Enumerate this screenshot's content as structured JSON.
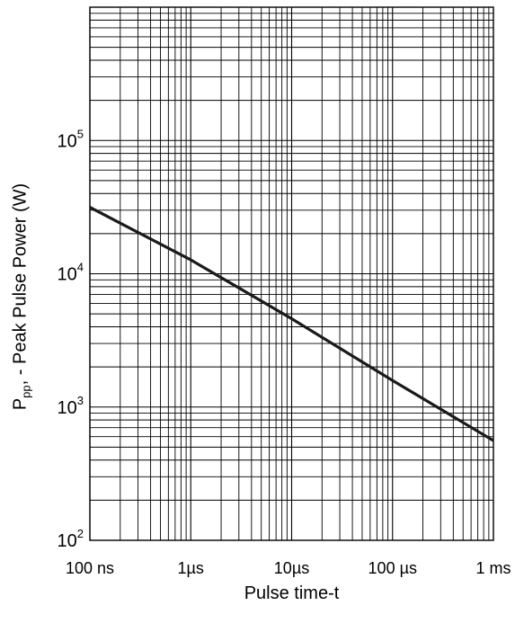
{
  "chart_data": {
    "type": "line",
    "x_scale": "log",
    "y_scale": "log",
    "xlim": [
      1e-07,
      0.001
    ],
    "ylim": [
      100,
      1000000
    ],
    "x_ticks": [
      {
        "value": 1e-07,
        "label": "100 ns"
      },
      {
        "value": 1e-06,
        "label": "1µs"
      },
      {
        "value": 1e-05,
        "label": "10µs"
      },
      {
        "value": 0.0001,
        "label": "100 µs"
      },
      {
        "value": 0.001,
        "label": "1 ms"
      }
    ],
    "y_ticks": [
      {
        "value": 100,
        "base": "10",
        "exp": "2"
      },
      {
        "value": 1000,
        "base": "10",
        "exp": "3"
      },
      {
        "value": 10000,
        "base": "10",
        "exp": "4"
      },
      {
        "value": 100000,
        "base": "10",
        "exp": "5"
      }
    ],
    "xlabel": "Pulse time-t",
    "ylabel": {
      "main": "P",
      "sub": "pp",
      "rest": ", - Peak Pulse Power (W)"
    },
    "grid": true,
    "line_color": "#1a1a1a",
    "grid_color": "#000000",
    "series": [
      {
        "x": [
          1e-07,
          1e-06,
          1e-05,
          0.0001,
          0.001
        ],
        "y": [
          31500,
          12700,
          4600,
          1580,
          560
        ]
      }
    ]
  }
}
